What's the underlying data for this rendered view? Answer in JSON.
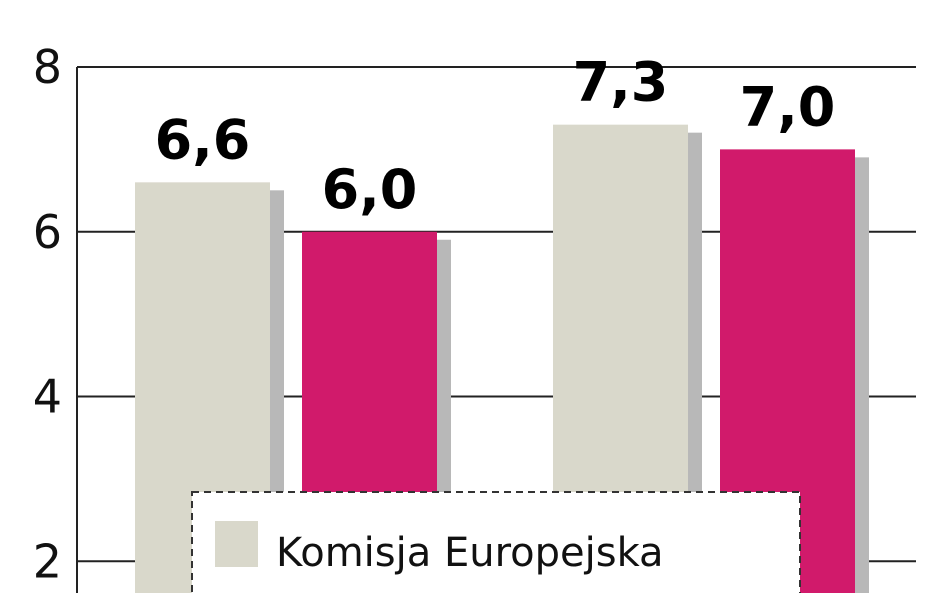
{
  "chart_data": {
    "type": "bar",
    "categories": [
      "",
      ""
    ],
    "series": [
      {
        "name": "Komisja Europejska",
        "values": [
          6.6,
          7.3
        ],
        "labels": [
          "6,6",
          "7,3"
        ]
      },
      {
        "values": [
          6.0,
          7.0
        ],
        "labels": [
          "6,0",
          "7,0"
        ]
      }
    ],
    "ylim": [
      0,
      8
    ],
    "yticks": [
      2,
      4,
      6,
      8
    ],
    "ytick_labels": [
      "2",
      "4",
      "6",
      "8"
    ],
    "grid": true,
    "legend_position": "bottom-center",
    "colors": {
      "series_1": "#d9d8cb",
      "series_2": "#d11a6b",
      "shadow": "#b8b8b8",
      "grid": "#222222"
    }
  },
  "legend": {
    "items": [
      {
        "label": "Komisja Europejska"
      }
    ]
  }
}
